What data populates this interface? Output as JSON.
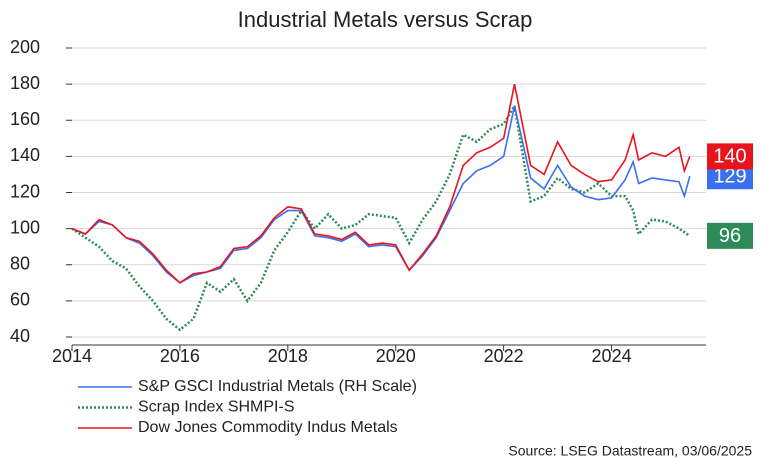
{
  "chart_data": {
    "type": "line",
    "title": "Industrial Metals versus Scrap",
    "source": "Source: LSEG Datastream, 03/06/2025",
    "x": [
      2014,
      2014.25,
      2014.5,
      2014.75,
      2015,
      2015.25,
      2015.5,
      2015.75,
      2016,
      2016.25,
      2016.5,
      2016.75,
      2017,
      2017.25,
      2017.5,
      2017.75,
      2018,
      2018.25,
      2018.5,
      2018.75,
      2019,
      2019.25,
      2019.5,
      2019.75,
      2020,
      2020.25,
      2020.5,
      2020.75,
      2021,
      2021.25,
      2021.5,
      2021.75,
      2022,
      2022.2,
      2022.5,
      2022.75,
      2023,
      2023.25,
      2023.5,
      2023.75,
      2024,
      2024.25,
      2024.4,
      2024.5,
      2024.75,
      2025,
      2025.25,
      2025.35,
      2025.45
    ],
    "xlim": [
      2014,
      2025.75
    ],
    "xticks": [
      2014,
      2016,
      2018,
      2020,
      2022,
      2024
    ],
    "ylim": [
      40,
      200
    ],
    "yticks": [
      40,
      60,
      80,
      100,
      120,
      140,
      160,
      180,
      200
    ],
    "grid": true,
    "series": [
      {
        "name": "S&P GSCI Industrial Metals (RH Scale)",
        "color": "#3a6ff0",
        "style": "solid",
        "last_label": 129,
        "values": [
          100,
          97,
          104,
          102,
          95,
          92,
          85,
          76,
          70,
          74,
          76,
          78,
          88,
          89,
          95,
          105,
          110,
          110,
          96,
          95,
          93,
          97,
          90,
          91,
          90,
          77,
          85,
          95,
          110,
          125,
          132,
          135,
          140,
          168,
          128,
          122,
          135,
          123,
          118,
          116,
          117,
          127,
          137,
          125,
          128,
          127,
          126,
          118,
          129
        ]
      },
      {
        "name": "Scrap Index SHMPI-S",
        "color": "#2e8b57",
        "style": "dotted",
        "last_label": 96,
        "values": [
          100,
          95,
          90,
          82,
          78,
          68,
          60,
          50,
          44,
          50,
          70,
          65,
          72,
          60,
          70,
          88,
          98,
          110,
          100,
          108,
          100,
          102,
          108,
          107,
          106,
          92,
          105,
          115,
          130,
          152,
          148,
          155,
          158,
          168,
          115,
          118,
          128,
          122,
          120,
          125,
          118,
          118,
          110,
          97,
          105,
          104,
          100,
          98,
          96
        ]
      },
      {
        "name": "Dow Jones Commodity Indus Metals",
        "color": "#e8141c",
        "style": "solid",
        "last_label": 140,
        "values": [
          100,
          97,
          105,
          102,
          95,
          93,
          86,
          77,
          70,
          75,
          76,
          79,
          89,
          90,
          96,
          106,
          112,
          111,
          97,
          96,
          94,
          98,
          91,
          92,
          91,
          77,
          86,
          96,
          112,
          135,
          142,
          145,
          150,
          180,
          135,
          130,
          148,
          135,
          130,
          126,
          127,
          138,
          152,
          138,
          142,
          140,
          145,
          132,
          140
        ]
      }
    ]
  }
}
